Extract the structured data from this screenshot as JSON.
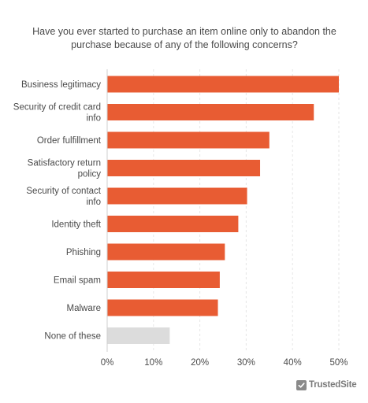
{
  "title_lines": [
    "Have you ever started to purchase an item online only to abandon the",
    "purchase because of any of the following concerns?"
  ],
  "colors": {
    "primary_bar": "#e85c33",
    "none_bar": "#dcdcdc",
    "grid": "#e6e6e6",
    "axis": "#555555",
    "text": "#4a4a4a"
  },
  "chart_data": {
    "type": "bar",
    "orientation": "horizontal",
    "title": "Have you ever started to purchase an item online only to abandon the purchase because of any of the following concerns?",
    "categories": [
      "Business legitimacy",
      "Security of credit card info",
      "Order fulfillment",
      "Satisfactory return policy",
      "Security of contact info",
      "Identity theft",
      "Phishing",
      "Email spam",
      "Malware",
      "None of these"
    ],
    "category_label_lines": [
      [
        "Business legitimacy"
      ],
      [
        "Security of credit card",
        "info"
      ],
      [
        "Order fulfillment"
      ],
      [
        "Satisfactory return",
        "policy"
      ],
      [
        "Security of contact",
        "info"
      ],
      [
        "Identity theft"
      ],
      [
        "Phishing"
      ],
      [
        "Email spam"
      ],
      [
        "Malware"
      ],
      [
        "None of these"
      ]
    ],
    "values": [
      50,
      44.6,
      35,
      33,
      30.2,
      28.3,
      25.4,
      24.3,
      23.9,
      13.5
    ],
    "bar_colors": [
      "#e85c33",
      "#e85c33",
      "#e85c33",
      "#e85c33",
      "#e85c33",
      "#e85c33",
      "#e85c33",
      "#e85c33",
      "#e85c33",
      "#dcdcdc"
    ],
    "xlim": [
      0,
      50
    ],
    "xticks": [
      0,
      10,
      20,
      30,
      40,
      50
    ],
    "xtick_labels": [
      "0%",
      "10%",
      "20%",
      "30%",
      "40%",
      "50%"
    ],
    "grid": true,
    "xlabel": "",
    "ylabel": ""
  },
  "brand": {
    "name": "TrustedSite",
    "icon": "checkmark-shield-icon"
  }
}
